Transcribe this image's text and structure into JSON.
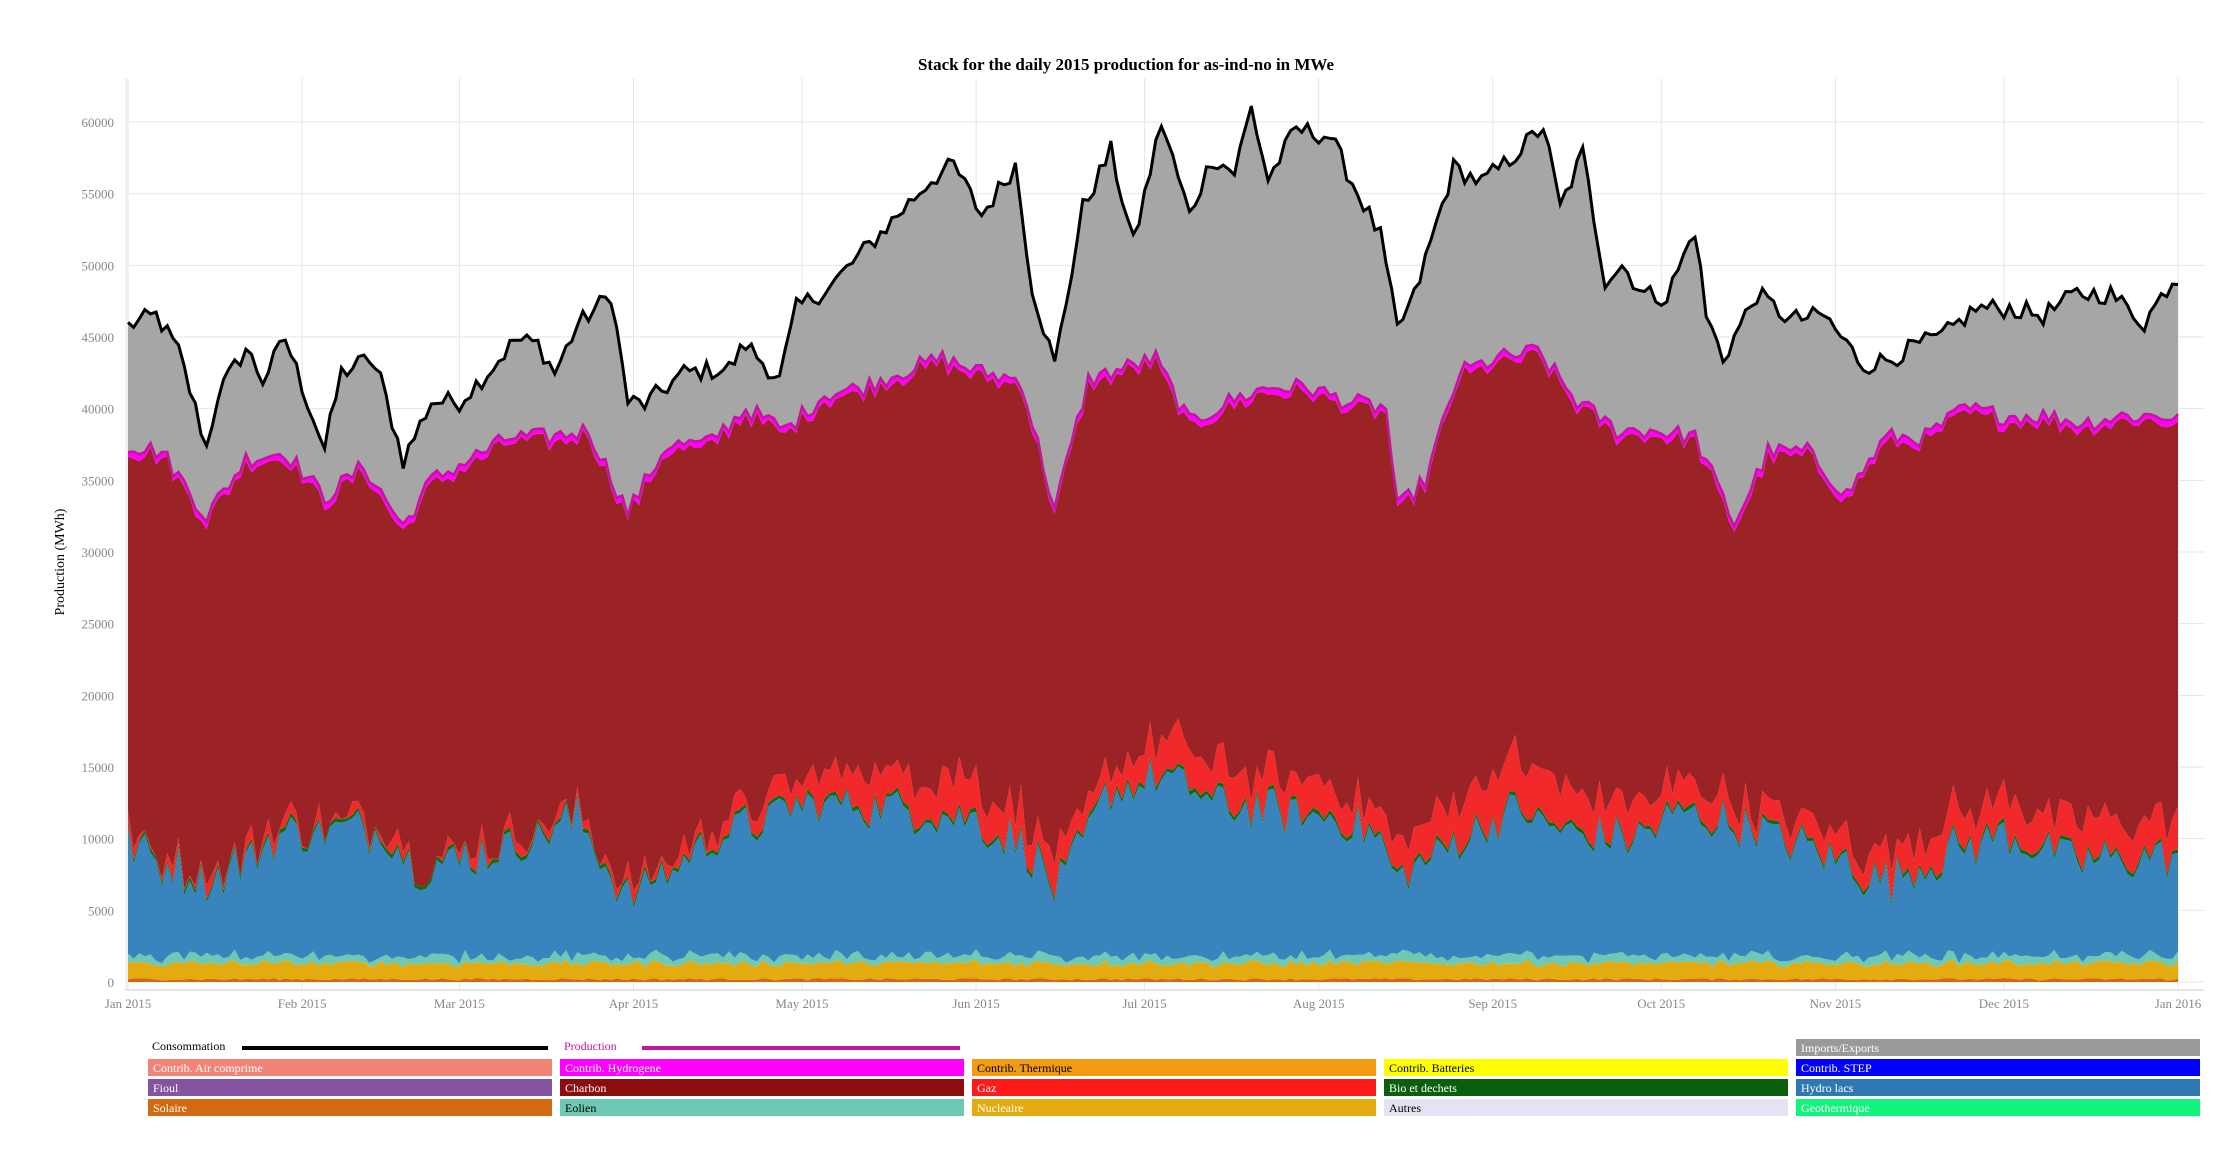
{
  "chart_data": {
    "type": "area",
    "title": "Stack for the daily 2015 production for as-ind-no in MWe",
    "xlabel": "",
    "ylabel": "Production (MWh)",
    "ylim": [
      0,
      63000
    ],
    "y_ticks": [
      0,
      5000,
      10000,
      15000,
      20000,
      25000,
      30000,
      35000,
      40000,
      45000,
      50000,
      55000,
      60000
    ],
    "x_range": [
      "2015-01-01",
      "2016-01-01"
    ],
    "x_ticks": [
      "Jan 2015",
      "Feb 2015",
      "Mar 2015",
      "Apr 2015",
      "May 2015",
      "Jun 2015",
      "Jul 2015",
      "Aug 2015",
      "Sep 2015",
      "Oct 2015",
      "Nov 2015",
      "Dec 2015",
      "Jan 2016"
    ],
    "grid": true,
    "legend_position": "bottom",
    "stack_order": [
      "Solaire",
      "Nucleaire",
      "Eolien",
      "Hydro lacs",
      "Bio et dechets",
      "Gaz",
      "Charbon",
      "Contrib. Hydrogene"
    ],
    "series": [
      {
        "name": "Consommation",
        "style": "line",
        "color": "#000000",
        "keypoints": [
          [
            "2015-01-01",
            45800
          ],
          [
            "2015-01-06",
            46500
          ],
          [
            "2015-01-10",
            44000
          ],
          [
            "2015-01-15",
            37300
          ],
          [
            "2015-01-17",
            41000
          ],
          [
            "2015-01-22",
            44200
          ],
          [
            "2015-01-25",
            42000
          ],
          [
            "2015-01-29",
            44900
          ],
          [
            "2015-02-05",
            37200
          ],
          [
            "2015-02-08",
            42500
          ],
          [
            "2015-02-13",
            43500
          ],
          [
            "2015-02-15",
            42000
          ],
          [
            "2015-02-19",
            36400
          ],
          [
            "2015-02-24",
            40500
          ],
          [
            "2015-03-01",
            40500
          ],
          [
            "2015-03-06",
            42500
          ],
          [
            "2015-03-11",
            44800
          ],
          [
            "2015-03-15",
            44500
          ],
          [
            "2015-03-18",
            42500
          ],
          [
            "2015-03-22",
            45800
          ],
          [
            "2015-03-28",
            48000
          ],
          [
            "2015-03-31",
            40500
          ],
          [
            "2015-04-03",
            40300
          ],
          [
            "2015-04-10",
            42500
          ],
          [
            "2015-04-18",
            42800
          ],
          [
            "2015-04-21",
            44500
          ],
          [
            "2015-04-27",
            42000
          ],
          [
            "2015-04-30",
            47000
          ],
          [
            "2015-05-06",
            48500
          ],
          [
            "2015-05-12",
            51000
          ],
          [
            "2015-05-18",
            53500
          ],
          [
            "2015-05-24",
            56000
          ],
          [
            "2015-05-28",
            57000
          ],
          [
            "2015-06-02",
            53500
          ],
          [
            "2015-06-08",
            57000
          ],
          [
            "2015-06-11",
            48500
          ],
          [
            "2015-06-15",
            43000
          ],
          [
            "2015-06-20",
            54000
          ],
          [
            "2015-06-25",
            58000
          ],
          [
            "2015-06-29",
            51500
          ],
          [
            "2015-07-04",
            60000
          ],
          [
            "2015-07-09",
            53500
          ],
          [
            "2015-07-13",
            57500
          ],
          [
            "2015-07-17",
            56500
          ],
          [
            "2015-07-20",
            61000
          ],
          [
            "2015-07-23",
            56000
          ],
          [
            "2015-07-28",
            59500
          ],
          [
            "2015-08-03",
            59000
          ],
          [
            "2015-08-08",
            55000
          ],
          [
            "2015-08-12",
            52000
          ],
          [
            "2015-08-15",
            45500
          ],
          [
            "2015-08-18",
            47800
          ],
          [
            "2015-08-25",
            56800
          ],
          [
            "2015-08-30",
            55800
          ],
          [
            "2015-09-03",
            57000
          ],
          [
            "2015-09-10",
            59700
          ],
          [
            "2015-09-13",
            54000
          ],
          [
            "2015-09-17",
            57800
          ],
          [
            "2015-09-21",
            49000
          ],
          [
            "2015-09-24",
            50000
          ],
          [
            "2015-09-28",
            48000
          ],
          [
            "2015-10-02",
            47800
          ],
          [
            "2015-10-07",
            52500
          ],
          [
            "2015-10-09",
            46500
          ],
          [
            "2015-10-12",
            43500
          ],
          [
            "2015-10-18",
            48000
          ],
          [
            "2015-10-24",
            46200
          ],
          [
            "2015-10-30",
            46500
          ],
          [
            "2015-11-06",
            43000
          ],
          [
            "2015-11-11",
            43500
          ],
          [
            "2015-11-16",
            44500
          ],
          [
            "2015-11-20",
            45000
          ],
          [
            "2015-11-26",
            47000
          ],
          [
            "2015-12-02",
            47000
          ],
          [
            "2015-12-08",
            46500
          ],
          [
            "2015-12-14",
            48000
          ],
          [
            "2015-12-20",
            48000
          ],
          [
            "2015-12-26",
            46000
          ],
          [
            "2015-12-31",
            49000
          ]
        ]
      },
      {
        "name": "Production",
        "style": "line",
        "color": "#c2179b",
        "keypoints": [
          [
            "2015-01-01",
            37500
          ],
          [
            "2015-01-07",
            37000
          ],
          [
            "2015-01-15",
            32500
          ],
          [
            "2015-01-22",
            36500
          ],
          [
            "2015-01-29",
            37000
          ],
          [
            "2015-02-05",
            33800
          ],
          [
            "2015-02-12",
            36000
          ],
          [
            "2015-02-19",
            31800
          ],
          [
            "2015-02-24",
            35000
          ],
          [
            "2015-03-03",
            36500
          ],
          [
            "2015-03-10",
            38000
          ],
          [
            "2015-03-17",
            38000
          ],
          [
            "2015-03-24",
            38500
          ],
          [
            "2015-03-31",
            32800
          ],
          [
            "2015-04-07",
            37500
          ],
          [
            "2015-04-14",
            37500
          ],
          [
            "2015-04-21",
            40000
          ],
          [
            "2015-04-28",
            38500
          ],
          [
            "2015-05-05",
            41000
          ],
          [
            "2015-05-12",
            41500
          ],
          [
            "2015-05-18",
            42500
          ],
          [
            "2015-05-26",
            43500
          ],
          [
            "2015-06-02",
            42500
          ],
          [
            "2015-06-09",
            42000
          ],
          [
            "2015-06-15",
            33000
          ],
          [
            "2015-06-21",
            42000
          ],
          [
            "2015-06-27",
            42800
          ],
          [
            "2015-07-03",
            43500
          ],
          [
            "2015-07-09",
            39000
          ],
          [
            "2015-07-16",
            40500
          ],
          [
            "2015-07-23",
            41500
          ],
          [
            "2015-07-30",
            41500
          ],
          [
            "2015-08-06",
            40500
          ],
          [
            "2015-08-13",
            40000
          ],
          [
            "2015-08-15",
            33000
          ],
          [
            "2015-08-20",
            35000
          ],
          [
            "2015-08-26",
            42500
          ],
          [
            "2015-09-02",
            43500
          ],
          [
            "2015-09-09",
            44000
          ],
          [
            "2015-09-16",
            40500
          ],
          [
            "2015-09-23",
            38500
          ],
          [
            "2015-09-30",
            38500
          ],
          [
            "2015-10-07",
            38000
          ],
          [
            "2015-10-14",
            32000
          ],
          [
            "2015-10-20",
            37000
          ],
          [
            "2015-10-27",
            37000
          ],
          [
            "2015-11-03",
            34000
          ],
          [
            "2015-11-10",
            38000
          ],
          [
            "2015-11-17",
            38000
          ],
          [
            "2015-11-24",
            40000
          ],
          [
            "2015-12-01",
            39500
          ],
          [
            "2015-12-08",
            39500
          ],
          [
            "2015-12-15",
            39000
          ],
          [
            "2015-12-22",
            39500
          ],
          [
            "2015-12-31",
            39500
          ]
        ]
      },
      {
        "name": "Imports/Exports",
        "style": "fill-between",
        "color": "#a6a6a6",
        "between": [
          "Production",
          "Consommation"
        ]
      },
      {
        "name": "Hydro lacs",
        "style": "area",
        "color": "#3a84be",
        "keypoints": [
          [
            "2015-01-01",
            7800
          ],
          [
            "2015-01-15",
            5000
          ],
          [
            "2015-01-29",
            8500
          ],
          [
            "2015-02-15",
            9000
          ],
          [
            "2015-02-22",
            6000
          ],
          [
            "2015-03-08",
            7500
          ],
          [
            "2015-03-22",
            9500
          ],
          [
            "2015-03-31",
            4000
          ],
          [
            "2015-04-15",
            8000
          ],
          [
            "2015-04-30",
            10500
          ],
          [
            "2015-05-15",
            10500
          ],
          [
            "2015-05-31",
            9500
          ],
          [
            "2015-06-10",
            7500
          ],
          [
            "2015-06-15",
            4500
          ],
          [
            "2015-06-25",
            11500
          ],
          [
            "2015-07-05",
            12500
          ],
          [
            "2015-07-15",
            10500
          ],
          [
            "2015-07-25",
            10000
          ],
          [
            "2015-08-05",
            9500
          ],
          [
            "2015-08-12",
            8000
          ],
          [
            "2015-08-15",
            5000
          ],
          [
            "2015-08-25",
            8000
          ],
          [
            "2015-09-05",
            10000
          ],
          [
            "2015-09-15",
            8500
          ],
          [
            "2015-09-25",
            8000
          ],
          [
            "2015-10-05",
            10000
          ],
          [
            "2015-10-15",
            9000
          ],
          [
            "2015-10-25",
            8000
          ],
          [
            "2015-11-03",
            6500
          ],
          [
            "2015-11-10",
            5000
          ],
          [
            "2015-11-20",
            7000
          ],
          [
            "2015-12-01",
            8500
          ],
          [
            "2015-12-10",
            7000
          ],
          [
            "2015-12-20",
            6500
          ],
          [
            "2015-12-31",
            7000
          ]
        ]
      },
      {
        "name": "Bio et dechets",
        "style": "area",
        "color": "#0a6d0f",
        "value": 250
      },
      {
        "name": "Gaz",
        "style": "area",
        "color": "#f2292b",
        "keypoints": [
          [
            "2015-01-01",
            300
          ],
          [
            "2015-03-01",
            400
          ],
          [
            "2015-04-01",
            500
          ],
          [
            "2015-04-20",
            800
          ],
          [
            "2015-05-10",
            2200
          ],
          [
            "2015-05-25",
            2800
          ],
          [
            "2015-06-05",
            2500
          ],
          [
            "2015-06-20",
            1500
          ],
          [
            "2015-07-05",
            2500
          ],
          [
            "2015-07-25",
            2000
          ],
          [
            "2015-08-10",
            1800
          ],
          [
            "2015-08-20",
            2500
          ],
          [
            "2015-09-05",
            3500
          ],
          [
            "2015-09-20",
            2500
          ],
          [
            "2015-10-05",
            1800
          ],
          [
            "2015-10-20",
            1200
          ],
          [
            "2015-11-05",
            1500
          ],
          [
            "2015-11-25",
            2500
          ],
          [
            "2015-12-15",
            2200
          ],
          [
            "2015-12-31",
            2500
          ]
        ]
      },
      {
        "name": "Charbon",
        "style": "area",
        "color": "#9c2325",
        "note": "remainder up to Production"
      },
      {
        "name": "Contrib. Hydrogene",
        "style": "area",
        "color": "#ff00ff",
        "value": 400
      },
      {
        "name": "Solaire",
        "style": "area",
        "color": "#d36a11",
        "value": 200
      },
      {
        "name": "Nucleaire",
        "style": "area",
        "color": "#e4ab11",
        "value": 1100
      },
      {
        "name": "Eolien",
        "style": "area",
        "color": "#6ec9b4",
        "value": 500
      }
    ]
  },
  "legend": {
    "consommation": {
      "label": "Consommation",
      "color": "#000000"
    },
    "production": {
      "label": "Production",
      "color": "#c2179b"
    },
    "imports": {
      "label": "Imports/Exports",
      "color": "#999999"
    },
    "items": [
      {
        "label": "Contrib. Air comprime",
        "color": "#f28477",
        "text": "#ffffff"
      },
      {
        "label": "Contrib. Hydrogene",
        "color": "#ff00ff",
        "text": "#ffffff"
      },
      {
        "label": "Contrib. Thermique",
        "color": "#f39c12",
        "text": "#000000"
      },
      {
        "label": "Contrib. Batteries",
        "color": "#ffff00",
        "text": "#000000"
      },
      {
        "label": "Contrib. STEP",
        "color": "#0000ff",
        "text": "#ffffff"
      },
      {
        "label": "Fioul",
        "color": "#8452a0",
        "text": "#ffffff"
      },
      {
        "label": "Charbon",
        "color": "#8b0d0d",
        "text": "#ffffff"
      },
      {
        "label": "Gaz",
        "color": "#ff1a1a",
        "text": "#ffffff"
      },
      {
        "label": "Bio et dechets",
        "color": "#0a5f0d",
        "text": "#ffffff"
      },
      {
        "label": "Hydro lacs",
        "color": "#2e78b3",
        "text": "#ffffff"
      },
      {
        "label": "Solaire",
        "color": "#d36a11",
        "text": "#ffffff"
      },
      {
        "label": "Eolien",
        "color": "#6ec9b4",
        "text": "#000000"
      },
      {
        "label": "Nucleaire",
        "color": "#e4ab11",
        "text": "#ffffff"
      },
      {
        "label": "Autres",
        "color": "#e3e3f3",
        "text": "#000000"
      },
      {
        "label": "Geothermique",
        "color": "#12f57c",
        "text": "#ffffff"
      }
    ]
  }
}
